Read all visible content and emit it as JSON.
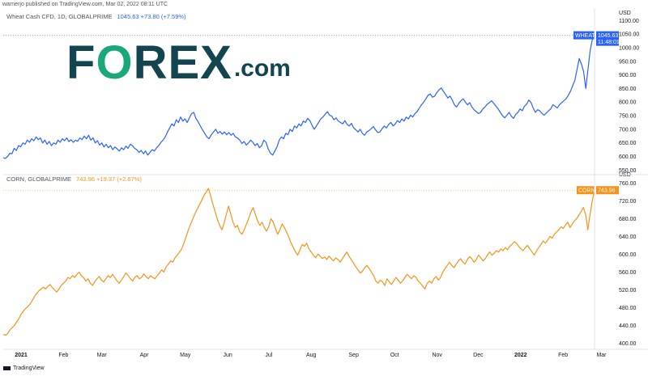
{
  "header": {
    "publisher_line": "warnerjo published on TradingView.com, Mar 02, 2022 08:11 UTC"
  },
  "logo": {
    "main_before": "F",
    "main_o": "O",
    "main_after": "REX",
    "suffix": ".com"
  },
  "footer": {
    "brand": "TradingView"
  },
  "colors": {
    "wheat": "#2962ff",
    "corn": "#f7931a",
    "axis": "#e0e3eb",
    "logo_dark": "#12454f",
    "logo_green": "#18a87c"
  },
  "chart_data": [
    {
      "type": "line",
      "legend": {
        "symbol": "Wheat Cash CFD, 1D, GLOBALPRIME",
        "values": "1045.63  +73.80 (+7.59%)"
      },
      "unit": "USD",
      "yticks": [
        550,
        600,
        650,
        700,
        750,
        800,
        850,
        900,
        950,
        1000,
        1050,
        1100
      ],
      "ytick_labels": [
        "550.00",
        "600.00",
        "650.00",
        "700.00",
        "750.00",
        "800.00",
        "850.00",
        "900.00",
        "950.00",
        "1000.00",
        "1050.00",
        "1100.00"
      ],
      "ylim": [
        545,
        1110
      ],
      "last_label": "WHEAT",
      "last_value": "1045.63",
      "countdown": "11:48:01",
      "series": [
        {
          "values": [
            595,
            593,
            600,
            612,
            610,
            630,
            622,
            640,
            636,
            650,
            645,
            660,
            652,
            665,
            658,
            672,
            662,
            668,
            650,
            660,
            645,
            655,
            640,
            650,
            645,
            660,
            652,
            665,
            658,
            668,
            655,
            662,
            652,
            660,
            656,
            668,
            662,
            675,
            665,
            678,
            660,
            668,
            650,
            658,
            642,
            650,
            635,
            645,
            632,
            640,
            625,
            635,
            628,
            620,
            632,
            625,
            638,
            630,
            645,
            640,
            630,
            625,
            615,
            622,
            610,
            620,
            605,
            615,
            625,
            620,
            632,
            640,
            652,
            660,
            672,
            690,
            705,
            720,
            712,
            735,
            725,
            745,
            730,
            738,
            725,
            742,
            758,
            762,
            740,
            728,
            712,
            698,
            685,
            672,
            665,
            680,
            690,
            700,
            685,
            692,
            682,
            690,
            680,
            688,
            678,
            685,
            672,
            668,
            660,
            648,
            655,
            642,
            650,
            660,
            652,
            640,
            648,
            632,
            640,
            660,
            652,
            628,
            612,
            605,
            620,
            635,
            660,
            672,
            665,
            685,
            680,
            700,
            692,
            712,
            705,
            720,
            712,
            730,
            725,
            740,
            732,
            715,
            700,
            712,
            725,
            738,
            745,
            755,
            765,
            752,
            748,
            735,
            742,
            730,
            725,
            720,
            732,
            718,
            712,
            722,
            705,
            698,
            690,
            700,
            685,
            678,
            690,
            695,
            702,
            710,
            698,
            688,
            690,
            702,
            712,
            705,
            718,
            725,
            712,
            720,
            732,
            725,
            738,
            730,
            745,
            738,
            752,
            745,
            758,
            765,
            778,
            790,
            800,
            812,
            825,
            830,
            818,
            822,
            835,
            845,
            852,
            840,
            828,
            815,
            822,
            808,
            790,
            782,
            795,
            805,
            812,
            800,
            790,
            798,
            782,
            772,
            765,
            758,
            762,
            775,
            782,
            792,
            798,
            805,
            795,
            785,
            775,
            762,
            750,
            742,
            752,
            762,
            748,
            740,
            755,
            762,
            775,
            768,
            785,
            792,
            808,
            798,
            778,
            762,
            772,
            768,
            758,
            752,
            760,
            768,
            775,
            790,
            785,
            778,
            790,
            798,
            805,
            812,
            825,
            840,
            860,
            880,
            920,
            960,
            940,
            912,
            850,
            920,
            990,
            1030,
            1045.63
          ]
        }
      ],
      "x_range_days": [
        0,
        432
      ]
    },
    {
      "type": "line",
      "legend": {
        "symbol": "CORN, GLOBALPRIME",
        "values": "743.96  +19.37 (+2.67%)"
      },
      "unit": "USD",
      "yticks": [
        400,
        440,
        480,
        520,
        560,
        600,
        640,
        680,
        720,
        760
      ],
      "ytick_labels": [
        "400.00",
        "440.00",
        "480.00",
        "520.00",
        "560.00",
        "600.00",
        "640.00",
        "680.00",
        "720.00",
        "760.00"
      ],
      "ylim": [
        390,
        768
      ],
      "last_label": "CORN",
      "last_value": "743.96",
      "series": [
        {
          "values": [
            420,
            418,
            422,
            430,
            435,
            440,
            448,
            455,
            465,
            472,
            478,
            482,
            488,
            496,
            505,
            512,
            518,
            522,
            526,
            522,
            528,
            532,
            525,
            520,
            515,
            522,
            530,
            535,
            540,
            548,
            545,
            552,
            548,
            555,
            560,
            552,
            548,
            540,
            545,
            535,
            530,
            538,
            545,
            550,
            542,
            538,
            545,
            552,
            548,
            555,
            548,
            540,
            535,
            542,
            550,
            558,
            552,
            545,
            540,
            548,
            552,
            545,
            548,
            556,
            550,
            545,
            552,
            548,
            545,
            552,
            558,
            565,
            560,
            572,
            578,
            585,
            582,
            592,
            598,
            605,
            612,
            625,
            640,
            655,
            668,
            680,
            692,
            702,
            712,
            722,
            732,
            740,
            748,
            730,
            712,
            695,
            678,
            665,
            655,
            670,
            690,
            708,
            690,
            672,
            660,
            665,
            650,
            645,
            655,
            668,
            680,
            695,
            705,
            690,
            675,
            665,
            672,
            660,
            652,
            662,
            680,
            672,
            658,
            645,
            655,
            668,
            660,
            650,
            638,
            625,
            615,
            605,
            598,
            610,
            622,
            618,
            625,
            612,
            605,
            598,
            592,
            600,
            596,
            590,
            594,
            588,
            596,
            590,
            585,
            592,
            588,
            582,
            590,
            598,
            605,
            595,
            588,
            580,
            572,
            565,
            558,
            562,
            570,
            575,
            568,
            560,
            552,
            540,
            535,
            542,
            538,
            530,
            545,
            538,
            532,
            540,
            548,
            542,
            535,
            540,
            548,
            555,
            550,
            545,
            552,
            548,
            540,
            535,
            528,
            522,
            535,
            540,
            535,
            545,
            550,
            542,
            548,
            560,
            568,
            575,
            582,
            575,
            570,
            578,
            585,
            590,
            582,
            578,
            588,
            595,
            590,
            582,
            588,
            598,
            592,
            585,
            590,
            598,
            605,
            598,
            602,
            608,
            605,
            612,
            608,
            615,
            610,
            618,
            622,
            628,
            625,
            618,
            612,
            608,
            615,
            620,
            612,
            605,
            598,
            608,
            615,
            622,
            630,
            625,
            632,
            640,
            636,
            645,
            650,
            655,
            662,
            658,
            666,
            672,
            660,
            668,
            675,
            680,
            688,
            696,
            705,
            690,
            655,
            690,
            720,
            744
          ]
        }
      ],
      "x_range_days": [
        0,
        432
      ]
    }
  ],
  "x_axis": {
    "ticks": [
      {
        "label": "2021",
        "day": 0,
        "bold": true
      },
      {
        "label": "Feb",
        "day": 31
      },
      {
        "label": "Mar",
        "day": 59
      },
      {
        "label": "Apr",
        "day": 90
      },
      {
        "label": "May",
        "day": 120
      },
      {
        "label": "Jun",
        "day": 151
      },
      {
        "label": "Jul",
        "day": 181
      },
      {
        "label": "Aug",
        "day": 212
      },
      {
        "label": "Sep",
        "day": 243
      },
      {
        "label": "Oct",
        "day": 273
      },
      {
        "label": "Nov",
        "day": 304
      },
      {
        "label": "Dec",
        "day": 334
      },
      {
        "label": "2022",
        "day": 365,
        "bold": true
      },
      {
        "label": "Feb",
        "day": 396
      },
      {
        "label": "Mar",
        "day": 424
      }
    ]
  }
}
